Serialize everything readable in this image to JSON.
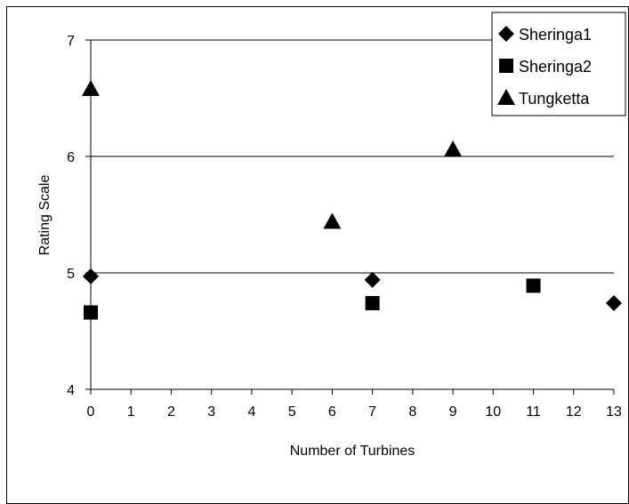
{
  "chart_data": {
    "type": "scatter",
    "title": "",
    "xlabel": "Number of Turbines",
    "ylabel": "Rating Scale",
    "xlim": [
      0,
      13
    ],
    "ylim": [
      4,
      7
    ],
    "x_ticks": [
      "0",
      "1",
      "2",
      "3",
      "4",
      "5",
      "6",
      "7",
      "8",
      "9",
      "10",
      "11",
      "12",
      "13"
    ],
    "y_ticks": [
      "4",
      "5",
      "6",
      "7"
    ],
    "grid": "horizontal",
    "legend_position": "top-right",
    "series": [
      {
        "name": "Sheringa1",
        "marker": "diamond",
        "color": "#000000",
        "points": [
          {
            "x": 0,
            "y": 4.97
          },
          {
            "x": 7,
            "y": 4.94
          },
          {
            "x": 13,
            "y": 4.74
          }
        ]
      },
      {
        "name": "Sheringa2",
        "marker": "square",
        "color": "#000000",
        "points": [
          {
            "x": 0,
            "y": 4.66
          },
          {
            "x": 7,
            "y": 4.74
          },
          {
            "x": 11,
            "y": 4.89
          }
        ]
      },
      {
        "name": "Tungketta",
        "marker": "triangle",
        "color": "#000000",
        "points": [
          {
            "x": 0,
            "y": 6.58
          },
          {
            "x": 6,
            "y": 5.44
          },
          {
            "x": 9,
            "y": 6.06
          }
        ]
      }
    ]
  }
}
